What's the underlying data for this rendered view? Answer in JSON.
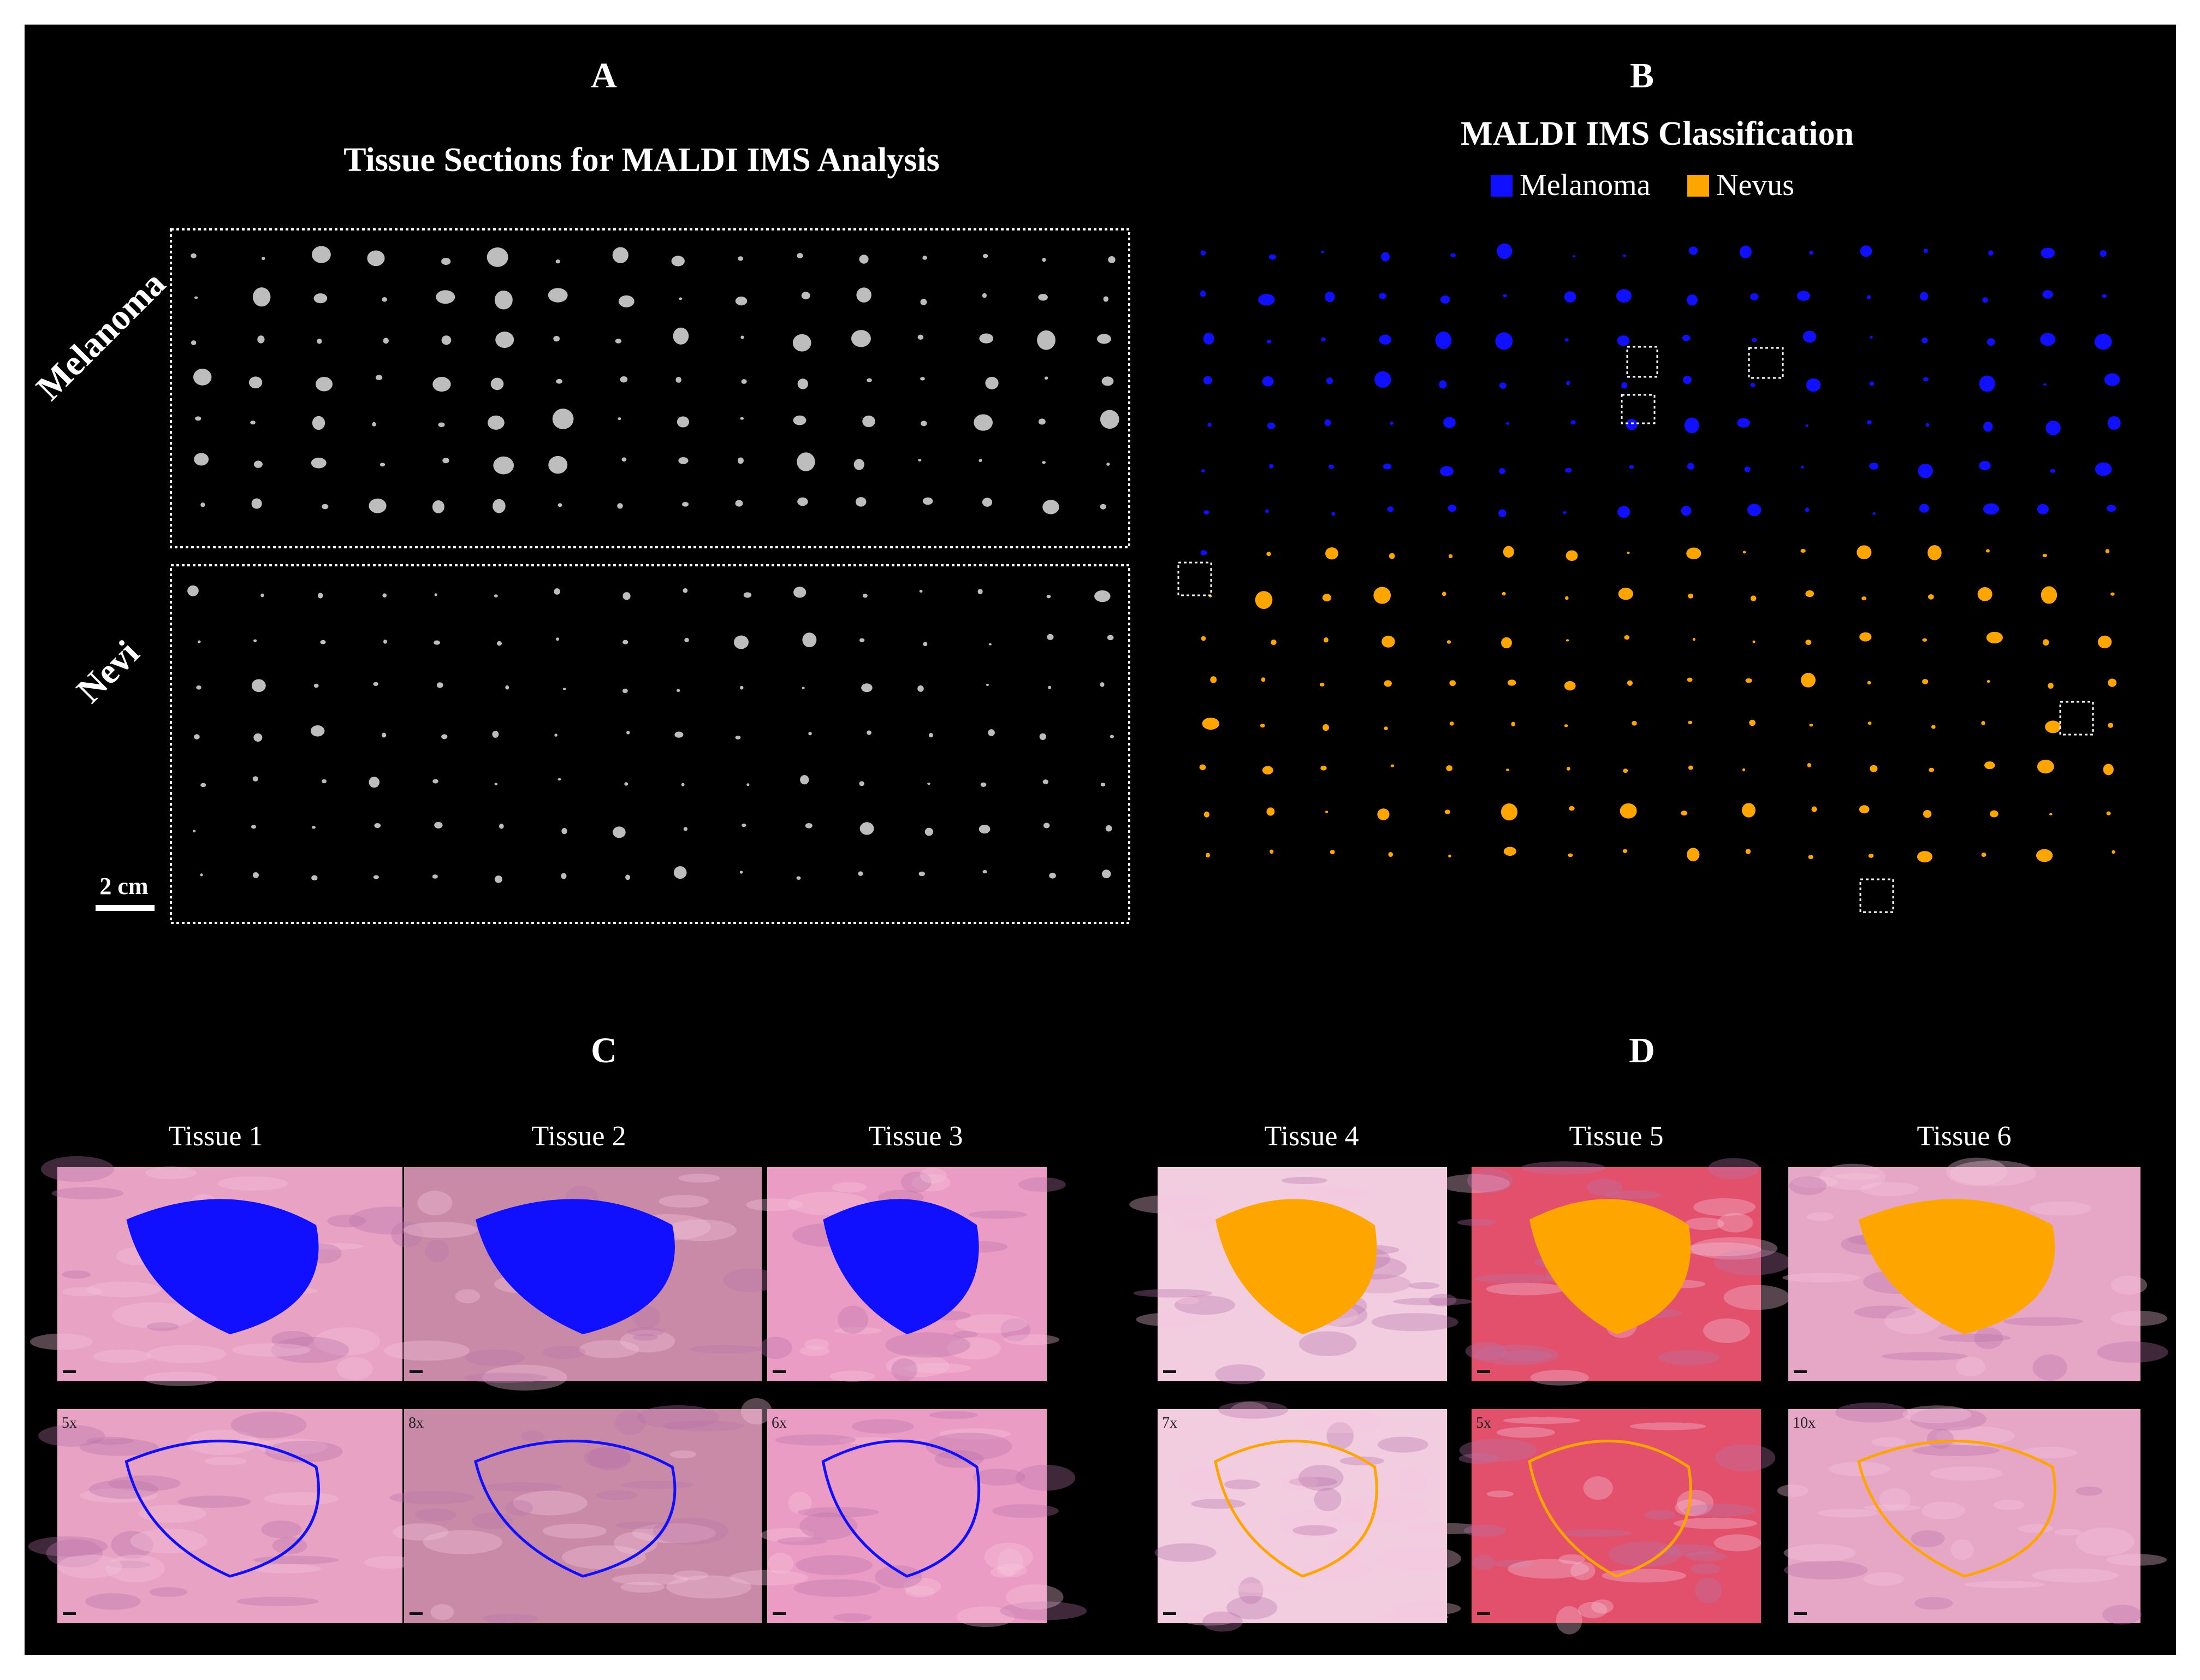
{
  "panels": {
    "A": {
      "letter": "A",
      "title": "Tissue Sections for MALDI IMS Analysis",
      "group_melanoma": "Melanoma",
      "group_nevi": "Nevi",
      "scale_bar": "2 cm"
    },
    "B": {
      "letter": "B",
      "title": "MALDI IMS Classification",
      "legend": [
        {
          "label": "Melanoma",
          "color": "#1010ff"
        },
        {
          "label": "Nevus",
          "color": "#ffa500"
        }
      ]
    },
    "C": {
      "letter": "C",
      "tissues": [
        {
          "label": "Tissue 1",
          "mag": "5x"
        },
        {
          "label": "Tissue 2",
          "mag": "8x"
        },
        {
          "label": "Tissue 3",
          "mag": "6x"
        }
      ]
    },
    "D": {
      "letter": "D",
      "tissues": [
        {
          "label": "Tissue 4",
          "mag": "7x"
        },
        {
          "label": "Tissue 5",
          "mag": "5x"
        },
        {
          "label": "Tissue 6",
          "mag": "10x"
        }
      ]
    }
  },
  "colors": {
    "background": "#000000",
    "melanoma": "#1010ff",
    "nevus": "#ffa500",
    "tissue_gray": "#bdbdbd",
    "he_pink": "#e7a2c4",
    "he_red": "#e2506c"
  }
}
